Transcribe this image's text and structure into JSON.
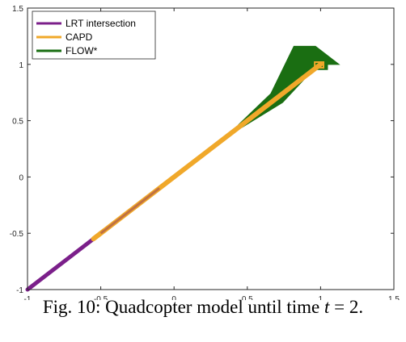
{
  "chart_data": {
    "type": "line",
    "xlim": [
      -1,
      1.5
    ],
    "ylim": [
      -1,
      1.5
    ],
    "x_ticks": [
      "-1",
      "-0.5",
      "0",
      "0.5",
      "1",
      "1.5"
    ],
    "y_ticks": [
      "-1",
      "-0.5",
      "0",
      "0.5",
      "1",
      "1.5"
    ],
    "grid": false,
    "legend_position": "top-left",
    "series": [
      {
        "name": "LRT intersection",
        "color": "#7b1f8a",
        "x": [
          -1,
          -0.5,
          0,
          0.5,
          1
        ],
        "y": [
          -1,
          -0.5,
          0,
          0.5,
          1
        ]
      },
      {
        "name": "CAPD",
        "color": "#f0a82a",
        "x": [
          -0.55,
          0,
          0.5,
          1
        ],
        "y": [
          -0.55,
          0,
          0.5,
          1
        ]
      },
      {
        "name": "FLOW*",
        "color": "#1a6e12",
        "x": [
          0.45,
          0.7,
          0.9,
          1.05
        ],
        "y": [
          0.45,
          0.7,
          1.08,
          1.08
        ],
        "band_half_width": [
          0.02,
          0.06,
          0.12,
          0.12
        ]
      }
    ]
  },
  "caption": {
    "prefix": "Fig. 10: Quadcopter model until time ",
    "variable": "t",
    "suffix": " = 2."
  }
}
